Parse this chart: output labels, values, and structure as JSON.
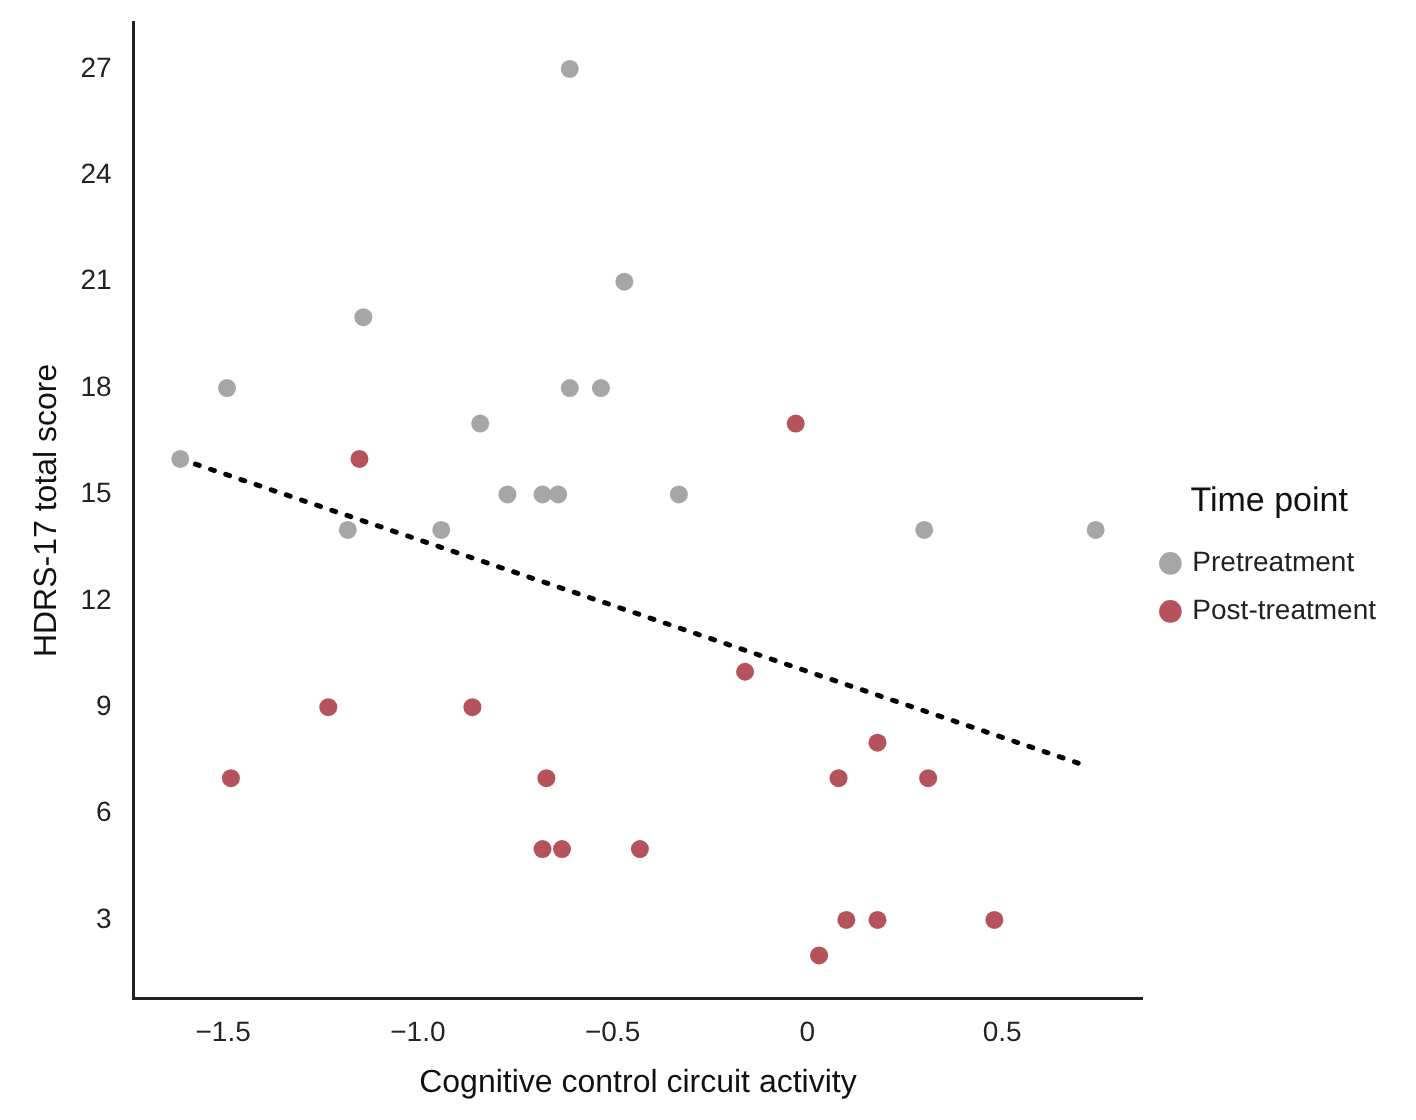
{
  "chart_data": {
    "type": "scatter",
    "xlabel": "Cognitive control circuit activity",
    "ylabel": "HDRS-17 total score",
    "legend_title": "Time point",
    "legend": "right",
    "grid": false,
    "marker": "circle",
    "xlim": [
      -1.73,
      0.86
    ],
    "xticks": [
      {
        "value": -1.5,
        "label": "−1.5"
      },
      {
        "value": -1,
        "label": "−1.0"
      },
      {
        "value": -0.5,
        "label": "−0.5"
      },
      {
        "value": 0,
        "label": "0"
      },
      {
        "value": 0.5,
        "label": "0.5"
      }
    ],
    "ylim": [
      0.8,
      28.3
    ],
    "yticks": [
      3,
      6,
      9,
      12,
      15,
      18,
      21,
      24,
      27
    ],
    "series": [
      {
        "name": "Pretreatment",
        "color": "#a6a6a6",
        "x": [
          -1.61,
          -1.49,
          -1.14,
          -1.18,
          -0.94,
          -0.84,
          -0.77,
          -0.68,
          -0.64,
          -0.61,
          -0.61,
          -0.53,
          -0.47,
          -0.33,
          0.3,
          0.74
        ],
        "values": [
          16,
          18,
          20,
          14,
          14,
          17,
          15,
          15,
          15,
          27,
          18,
          18,
          21,
          15,
          14,
          14
        ]
      },
      {
        "name": "Post-treatment",
        "color": "#b5525c",
        "x": [
          -1.15,
          -1.48,
          -1.23,
          -0.86,
          -0.67,
          -0.68,
          -0.63,
          -0.43,
          -0.03,
          -0.16,
          0.18,
          0.08,
          0.31,
          0.03,
          0.1,
          0.18,
          0.48
        ],
        "values": [
          16,
          7,
          9,
          9,
          7,
          5,
          5,
          5,
          17,
          10,
          8,
          7,
          7,
          2,
          3,
          3,
          3
        ]
      },
      {
        "type": "line",
        "color": "#000000",
        "line_style": "dotted",
        "marker": "none",
        "x": [
          -1.61,
          0.71
        ],
        "values": [
          16,
          7.37
        ]
      }
    ]
  }
}
